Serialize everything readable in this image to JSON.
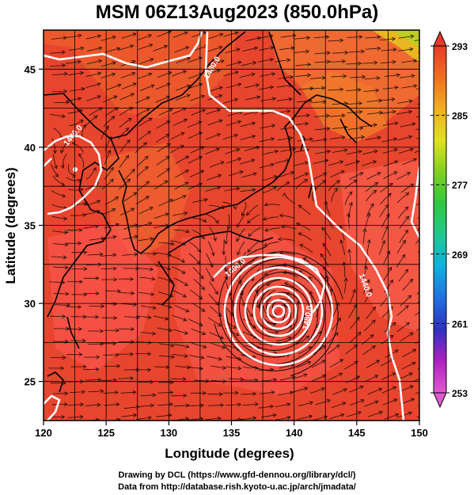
{
  "title": "MSM 06Z13Aug2023 (850.0hPa)",
  "x_axis": {
    "label": "Longitude (degrees)",
    "ticks": [
      "120",
      "125",
      "130",
      "135",
      "140",
      "145",
      "150"
    ],
    "range": [
      120,
      150
    ]
  },
  "y_axis": {
    "label": "Latitude  (degrees)",
    "ticks": [
      "25",
      "30",
      "35",
      "40",
      "45"
    ],
    "range": [
      22.5,
      47.5
    ]
  },
  "colorbar": {
    "ticks": [
      "293",
      "285",
      "277",
      "269",
      "261",
      "253"
    ],
    "range": [
      253,
      293
    ],
    "colors": [
      "#e05ad0",
      "#b020c0",
      "#3030c0",
      "#2070e0",
      "#10b0e0",
      "#20c890",
      "#30c840",
      "#80d020",
      "#e0e020",
      "#f0b020",
      "#f07020",
      "#e83a2a"
    ]
  },
  "contours": [
    {
      "label": "1480.0"
    },
    {
      "label": "1440.0"
    },
    {
      "label": "1400.0"
    },
    {
      "label": "1480.0"
    },
    {
      "label": "1440.0"
    }
  ],
  "credits": [
    "Drawing by DCL (https://www.gfd-dennou.org/library/dcl/)",
    "Data from http://database.rish.kyoto-u.ac.jp/arch/jmadata/"
  ],
  "colors": {
    "field_main": "#e8452e",
    "field_warm": "#f0702a",
    "field_hot": "#f07a28",
    "field_cool": "#ff6a5a",
    "contour": "#ffffff",
    "coast": "#000000"
  }
}
